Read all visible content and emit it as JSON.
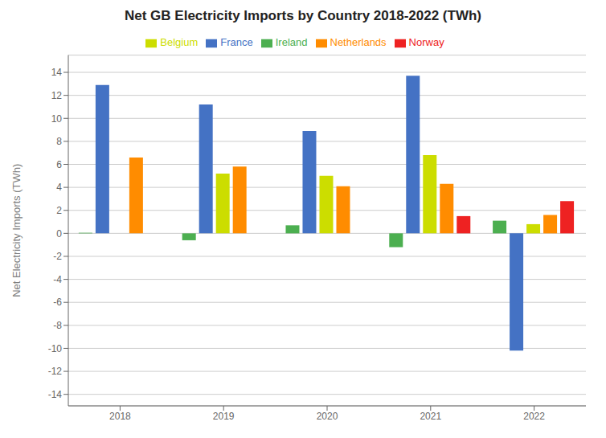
{
  "chart_data": {
    "type": "bar",
    "title": "Net GB Electricity Imports by Country 2018-2022 (TWh)",
    "y_label": "Net Electricity Imports (TWh)",
    "categories": [
      "2018",
      "2019",
      "2020",
      "2021",
      "2022"
    ],
    "series": [
      {
        "name": "Ireland",
        "color": "#4CAF50",
        "values": [
          0.05,
          -0.6,
          0.7,
          -1.2,
          1.1
        ]
      },
      {
        "name": "France",
        "color": "#4472C4",
        "values": [
          12.9,
          11.2,
          8.9,
          13.7,
          -10.2
        ]
      },
      {
        "name": "Belgium",
        "color": "#CCDD00",
        "values": [
          0.0,
          5.2,
          5.0,
          6.8,
          0.8
        ]
      },
      {
        "name": "Netherlands",
        "color": "#FF8C00",
        "values": [
          6.6,
          5.8,
          4.1,
          4.3,
          1.6
        ]
      },
      {
        "name": "Norway",
        "color": "#EE2222",
        "values": [
          0.0,
          0.0,
          0.0,
          1.5,
          2.8
        ]
      }
    ],
    "ylim": [
      -15,
      15.5
    ],
    "yticks": [
      -14,
      -12,
      -10,
      -8,
      -6,
      -4,
      -2,
      0,
      2,
      4,
      6,
      8,
      10,
      12,
      14
    ],
    "grid": true,
    "legend": "top"
  }
}
